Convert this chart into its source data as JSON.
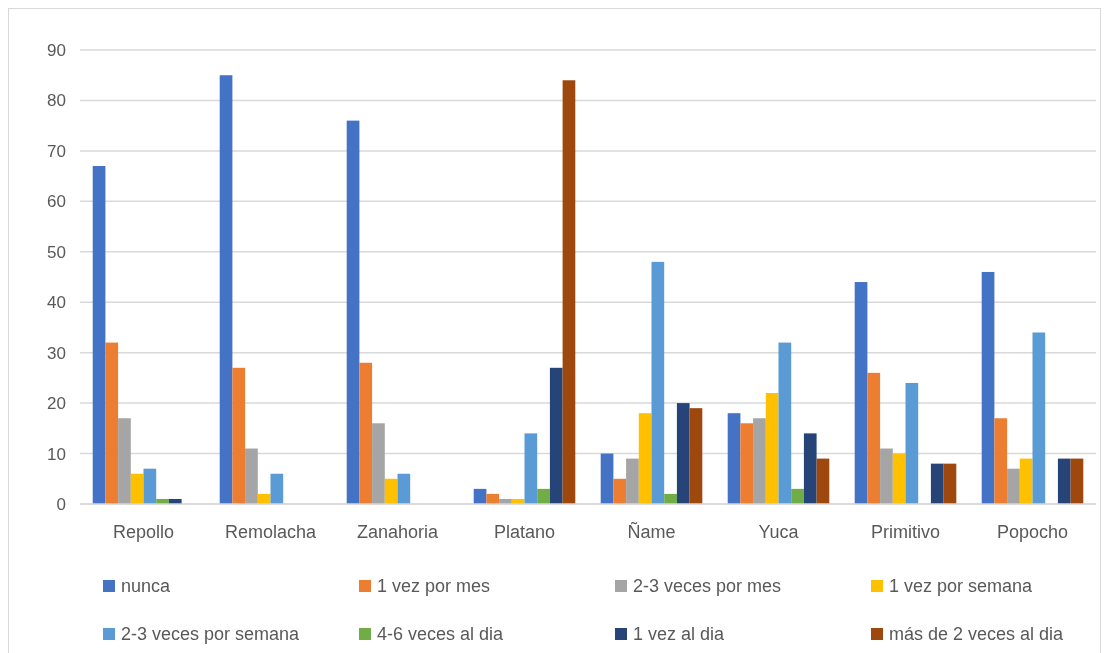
{
  "chart_data": {
    "type": "bar",
    "categories": [
      "Repollo",
      "Remolacha",
      "Zanahoria",
      "Platano",
      "Ñame",
      "Yuca",
      "Primitivo",
      "Popocho"
    ],
    "series": [
      {
        "name": "nunca",
        "color": "#4472c4",
        "values": [
          67,
          85,
          76,
          3,
          10,
          18,
          44,
          46
        ]
      },
      {
        "name": "1 vez por mes",
        "color": "#ed7d31",
        "values": [
          32,
          27,
          28,
          2,
          5,
          16,
          26,
          17
        ]
      },
      {
        "name": "2-3 veces por mes",
        "color": "#a5a5a5",
        "values": [
          17,
          11,
          16,
          1,
          9,
          17,
          11,
          7
        ]
      },
      {
        "name": "1 vez por semana",
        "color": "#ffc000",
        "values": [
          6,
          2,
          5,
          1,
          18,
          22,
          10,
          9
        ]
      },
      {
        "name": "2-3 veces por semana",
        "color": "#5b9bd5",
        "values": [
          7,
          6,
          6,
          14,
          48,
          32,
          24,
          34
        ]
      },
      {
        "name": "4-6 veces al dia",
        "color": "#70ad47",
        "values": [
          1,
          0,
          0,
          3,
          2,
          3,
          0,
          0
        ]
      },
      {
        "name": "1 vez al dia",
        "color": "#264478",
        "values": [
          1,
          0,
          0,
          27,
          20,
          14,
          8,
          9
        ]
      },
      {
        "name": "más de 2 veces al dia",
        "color": "#9e480e",
        "values": [
          0,
          0,
          0,
          84,
          19,
          9,
          8,
          9
        ]
      }
    ],
    "ylim": [
      0,
      90
    ],
    "yticks": [
      0,
      10,
      20,
      30,
      40,
      50,
      60,
      70,
      80,
      90
    ],
    "grid": "y",
    "legend": "bottom"
  }
}
